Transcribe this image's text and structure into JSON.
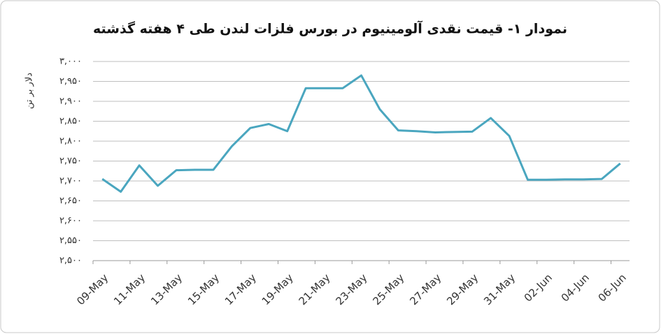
{
  "chart_data": {
    "type": "line",
    "title": "نمودار ۱- قیمت نقدی آلومینیوم در بورس فلزات لندن طی ۴ هفته گذشته",
    "y_label": "دلار بر تن",
    "categories": [
      "09-May",
      null,
      "11-May",
      null,
      "13-May",
      null,
      "15-May",
      null,
      "17-May",
      null,
      "19-May",
      null,
      "21-May",
      null,
      "23-May",
      null,
      "25-May",
      null,
      "27-May",
      null,
      "29-May",
      null,
      "31-May",
      null,
      "02-Jun",
      null,
      "04-Jun",
      null,
      "06-Jun"
    ],
    "series": [
      {
        "name": "Aluminium",
        "color": "#4aa6bf",
        "values": [
          2705,
          2673,
          2739,
          2688,
          2727,
          2728,
          2728,
          2787,
          2833,
          2843,
          2825,
          2933,
          2933,
          2933,
          2965,
          2880,
          2827,
          2825,
          2822,
          2823,
          2824,
          2858,
          2813,
          2703,
          2703,
          2704,
          2704,
          2705,
          2744
        ]
      }
    ],
    "ylim": [
      2500,
      3000
    ],
    "yticks": [
      {
        "value": 2500,
        "label": "۲,۵۰۰"
      },
      {
        "value": 2550,
        "label": "۲,۵۵۰"
      },
      {
        "value": 2600,
        "label": "۲,۶۰۰"
      },
      {
        "value": 2650,
        "label": "۲,۶۵۰"
      },
      {
        "value": 2700,
        "label": "۲,۷۰۰"
      },
      {
        "value": 2750,
        "label": "۲,۷۵۰"
      },
      {
        "value": 2800,
        "label": "۲,۸۰۰"
      },
      {
        "value": 2850,
        "label": "۲,۸۵۰"
      },
      {
        "value": 2900,
        "label": "۲,۹۰۰"
      },
      {
        "value": 2950,
        "label": "۲,۹۵۰"
      },
      {
        "value": 3000,
        "label": "۳,۰۰۰"
      }
    ],
    "grid": true
  }
}
